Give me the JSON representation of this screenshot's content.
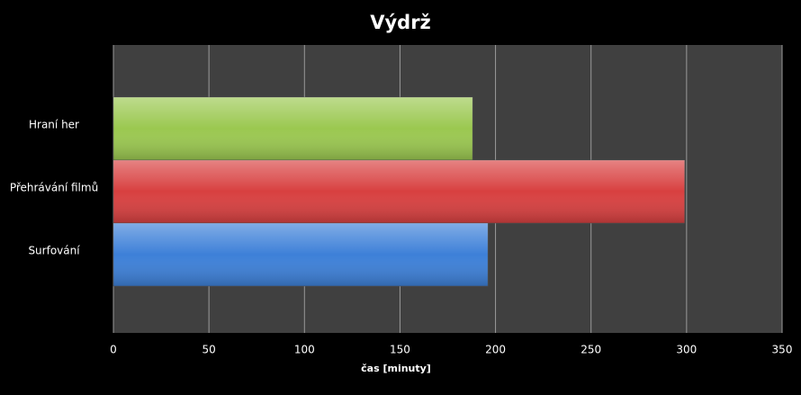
{
  "chart_data": {
    "type": "bar",
    "orientation": "horizontal",
    "title": "Výdrž",
    "categories": [
      "Hraní her",
      "Přehrávání filmů",
      "Surfování"
    ],
    "values": [
      188,
      299,
      196
    ],
    "colors": [
      "#9bc850",
      "#d84040",
      "#3d80d8"
    ],
    "x_label": "čas [minuty]",
    "xlim": [
      0,
      350
    ],
    "xticks": [
      0,
      50,
      100,
      150,
      200,
      250,
      300,
      350
    ],
    "grid": true
  }
}
